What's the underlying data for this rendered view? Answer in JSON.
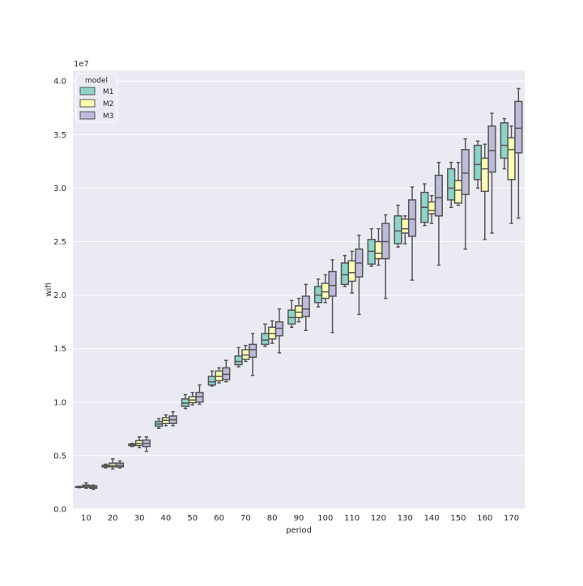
{
  "chart_data": {
    "type": "box",
    "title": "",
    "xlabel": "period",
    "ylabel": "wifi",
    "offset_label": "1e7",
    "ylim": [
      0,
      41000000
    ],
    "yticks": [
      0,
      5000000,
      10000000,
      15000000,
      20000000,
      25000000,
      30000000,
      35000000,
      40000000
    ],
    "ytick_labels": [
      "0.0",
      "0.5",
      "1.0",
      "1.5",
      "2.0",
      "2.5",
      "3.0",
      "3.5",
      "4.0"
    ],
    "grid": true,
    "categories": [
      "10",
      "20",
      "30",
      "40",
      "50",
      "60",
      "70",
      "80",
      "90",
      "100",
      "110",
      "120",
      "130",
      "140",
      "150",
      "160",
      "170"
    ],
    "legend": {
      "title": "model",
      "placement": "upper left"
    },
    "colors": {
      "M1": "#8dd3c7",
      "M2": "#ffffb3",
      "M3": "#bebada",
      "background": "#eaeaf2",
      "grid": "#ffffff",
      "box_edge": "#555555"
    },
    "series": [
      {
        "name": "M1",
        "boxes": [
          {
            "min": 2000000,
            "q1": 2030000,
            "median": 2060000,
            "q3": 2100000,
            "max": 2140000
          },
          {
            "min": 3850000,
            "q1": 3950000,
            "median": 4020000,
            "q3": 4100000,
            "max": 4200000
          },
          {
            "min": 5850000,
            "q1": 5930000,
            "median": 6000000,
            "q3": 6080000,
            "max": 6150000
          },
          {
            "min": 7550000,
            "q1": 7750000,
            "median": 7950000,
            "q3": 8200000,
            "max": 8450000
          },
          {
            "min": 9400000,
            "q1": 9600000,
            "median": 9900000,
            "q3": 10300000,
            "max": 10700000
          },
          {
            "min": 11500000,
            "q1": 11600000,
            "median": 11900000,
            "q3": 12400000,
            "max": 12900000
          },
          {
            "min": 13300000,
            "q1": 13500000,
            "median": 13800000,
            "q3": 14300000,
            "max": 15100000
          },
          {
            "min": 15200000,
            "q1": 15400000,
            "median": 15800000,
            "q3": 16400000,
            "max": 17300000
          },
          {
            "min": 17000000,
            "q1": 17300000,
            "median": 17900000,
            "q3": 18600000,
            "max": 19500000
          },
          {
            "min": 18900000,
            "q1": 19300000,
            "median": 20000000,
            "q3": 20800000,
            "max": 21500000
          },
          {
            "min": 20800000,
            "q1": 21000000,
            "median": 21900000,
            "q3": 23000000,
            "max": 23700000
          },
          {
            "min": 22700000,
            "q1": 22900000,
            "median": 24100000,
            "q3": 25200000,
            "max": 26200000
          },
          {
            "min": 24500000,
            "q1": 24800000,
            "median": 26000000,
            "q3": 27400000,
            "max": 28400000
          },
          {
            "min": 26500000,
            "q1": 26800000,
            "median": 28200000,
            "q3": 29600000,
            "max": 30400000
          },
          {
            "min": 28200000,
            "q1": 28900000,
            "median": 30000000,
            "q3": 31800000,
            "max": 32400000
          },
          {
            "min": 30000000,
            "q1": 30800000,
            "median": 32200000,
            "q3": 34000000,
            "max": 34400000
          },
          {
            "min": 31800000,
            "q1": 32800000,
            "median": 34000000,
            "q3": 36100000,
            "max": 36500000
          }
        ]
      },
      {
        "name": "M2",
        "boxes": [
          {
            "min": 1950000,
            "q1": 2050000,
            "median": 2130000,
            "q3": 2250000,
            "max": 2450000
          },
          {
            "min": 3750000,
            "q1": 3950000,
            "median": 4100000,
            "q3": 4300000,
            "max": 4700000
          },
          {
            "min": 5750000,
            "q1": 5950000,
            "median": 6150000,
            "q3": 6400000,
            "max": 6750000
          },
          {
            "min": 7800000,
            "q1": 8000000,
            "median": 8300000,
            "q3": 8550000,
            "max": 8800000
          },
          {
            "min": 9750000,
            "q1": 9950000,
            "median": 10200000,
            "q3": 10500000,
            "max": 10900000
          },
          {
            "min": 11800000,
            "q1": 12000000,
            "median": 12400000,
            "q3": 12900000,
            "max": 13200000
          },
          {
            "min": 13800000,
            "q1": 14000000,
            "median": 14400000,
            "q3": 14900000,
            "max": 15300000
          },
          {
            "min": 15500000,
            "q1": 15900000,
            "median": 16400000,
            "q3": 17000000,
            "max": 17600000
          },
          {
            "min": 17500000,
            "q1": 17900000,
            "median": 18400000,
            "q3": 19000000,
            "max": 19700000
          },
          {
            "min": 19300000,
            "q1": 19700000,
            "median": 20300000,
            "q3": 21100000,
            "max": 21900000
          },
          {
            "min": 20200000,
            "q1": 21300000,
            "median": 22100000,
            "q3": 23200000,
            "max": 24100000
          },
          {
            "min": 22800000,
            "q1": 23400000,
            "median": 23900000,
            "q3": 25000000,
            "max": 26200000
          },
          {
            "min": 24800000,
            "q1": 25800000,
            "median": 26200000,
            "q3": 27100000,
            "max": 27400000
          },
          {
            "min": 26700000,
            "q1": 27600000,
            "median": 27900000,
            "q3": 28700000,
            "max": 29300000
          },
          {
            "min": 28400000,
            "q1": 28600000,
            "median": 29800000,
            "q3": 30700000,
            "max": 32400000
          },
          {
            "min": 25200000,
            "q1": 29700000,
            "median": 31800000,
            "q3": 32800000,
            "max": 34100000
          },
          {
            "min": 26700000,
            "q1": 30800000,
            "median": 33600000,
            "q3": 34700000,
            "max": 35800000
          }
        ]
      },
      {
        "name": "M3",
        "boxes": [
          {
            "min": 1850000,
            "q1": 1950000,
            "median": 2050000,
            "q3": 2180000,
            "max": 2250000
          },
          {
            "min": 3850000,
            "q1": 3950000,
            "median": 4100000,
            "q3": 4300000,
            "max": 4500000
          },
          {
            "min": 5400000,
            "q1": 5850000,
            "median": 6150000,
            "q3": 6450000,
            "max": 6750000
          },
          {
            "min": 7800000,
            "q1": 8000000,
            "median": 8350000,
            "q3": 8700000,
            "max": 9100000
          },
          {
            "min": 9800000,
            "q1": 10000000,
            "median": 10500000,
            "q3": 10900000,
            "max": 11600000
          },
          {
            "min": 11900000,
            "q1": 12100000,
            "median": 12600000,
            "q3": 13200000,
            "max": 13900000
          },
          {
            "min": 12500000,
            "q1": 14200000,
            "median": 14900000,
            "q3": 15400000,
            "max": 16400000
          },
          {
            "min": 14600000,
            "q1": 16200000,
            "median": 16900000,
            "q3": 17500000,
            "max": 18700000
          },
          {
            "min": 16700000,
            "q1": 18000000,
            "median": 18700000,
            "q3": 19900000,
            "max": 21000000
          },
          {
            "min": 16500000,
            "q1": 19900000,
            "median": 20900000,
            "q3": 22200000,
            "max": 23300000
          },
          {
            "min": 18200000,
            "q1": 21700000,
            "median": 23000000,
            "q3": 24300000,
            "max": 25600000
          },
          {
            "min": 19700000,
            "q1": 23400000,
            "median": 25000000,
            "q3": 26700000,
            "max": 27500000
          },
          {
            "min": 21400000,
            "q1": 25500000,
            "median": 27100000,
            "q3": 28900000,
            "max": 30100000
          },
          {
            "min": 22800000,
            "q1": 27400000,
            "median": 29100000,
            "q3": 31200000,
            "max": 32400000
          },
          {
            "min": 24300000,
            "q1": 29400000,
            "median": 31400000,
            "q3": 33600000,
            "max": 34600000
          },
          {
            "min": 25800000,
            "q1": 31500000,
            "median": 33500000,
            "q3": 35800000,
            "max": 37000000
          },
          {
            "min": 27200000,
            "q1": 33300000,
            "median": 35600000,
            "q3": 38100000,
            "max": 39300000
          }
        ]
      }
    ]
  }
}
